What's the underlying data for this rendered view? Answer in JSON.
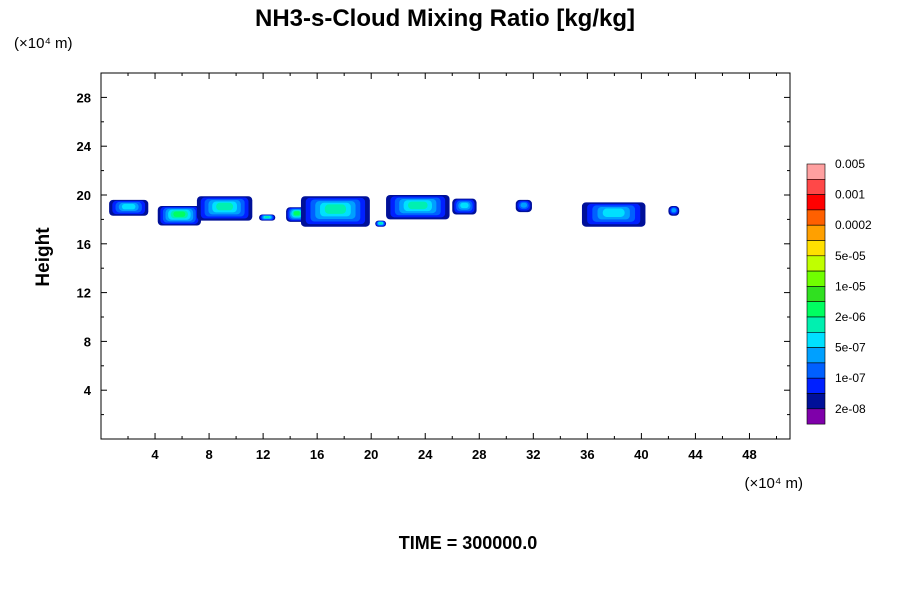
{
  "chart_data": {
    "type": "heatmap",
    "title": "NH3-s-Cloud Mixing Ratio [kg/kg]",
    "xlabel": "",
    "ylabel": "Height",
    "x_unit": "(×10⁴ m)",
    "y_unit": "(×10⁴ m)",
    "footer": "TIME = 300000.0",
    "xlim": [
      0,
      51
    ],
    "ylim": [
      0,
      30
    ],
    "x_ticks": [
      4,
      8,
      12,
      16,
      20,
      24,
      28,
      32,
      36,
      40,
      44,
      48
    ],
    "y_ticks": [
      4,
      8,
      12,
      16,
      20,
      24,
      28
    ],
    "grid": false,
    "legend_position": "right",
    "colorbar": {
      "colors": [
        "#7f00aa",
        "#001099",
        "#0020ff",
        "#0060ff",
        "#00a0ff",
        "#00e0ff",
        "#00f0b0",
        "#00ff60",
        "#30e020",
        "#70ff00",
        "#c0ff00",
        "#ffe000",
        "#ffa000",
        "#ff6000",
        "#ff0000",
        "#ff4848",
        "#ffa0a0"
      ],
      "labels": [
        "2e-08",
        "1e-07",
        "5e-07",
        "2e-06",
        "1e-05",
        "5e-05",
        "0.0002",
        "0.001",
        "0.005"
      ]
    },
    "cloud_cells": [
      {
        "x": [
          0.6,
          3.5
        ],
        "y": [
          18.3,
          19.6
        ],
        "level": 4
      },
      {
        "x": [
          4.2,
          7.4
        ],
        "y": [
          17.5,
          19.1
        ],
        "level": 6
      },
      {
        "x": [
          7.1,
          11.2
        ],
        "y": [
          17.9,
          19.9
        ],
        "level": 5
      },
      {
        "x": [
          11.7,
          12.9
        ],
        "y": [
          17.9,
          18.4
        ],
        "level": 5
      },
      {
        "x": [
          13.7,
          15.3
        ],
        "y": [
          17.8,
          19.0
        ],
        "level": 6
      },
      {
        "x": [
          14.8,
          19.9
        ],
        "y": [
          17.4,
          19.9
        ],
        "level": 5
      },
      {
        "x": [
          20.3,
          21.1
        ],
        "y": [
          17.4,
          17.9
        ],
        "level": 5
      },
      {
        "x": [
          21.1,
          25.8
        ],
        "y": [
          18.0,
          20.0
        ],
        "level": 5
      },
      {
        "x": [
          26.0,
          27.8
        ],
        "y": [
          18.4,
          19.7
        ],
        "level": 4
      },
      {
        "x": [
          30.7,
          31.9
        ],
        "y": [
          18.6,
          19.6
        ],
        "level": 3
      },
      {
        "x": [
          35.6,
          40.3
        ],
        "y": [
          17.4,
          19.4
        ],
        "level": 4
      },
      {
        "x": [
          42.0,
          42.8
        ],
        "y": [
          18.3,
          19.1
        ],
        "level": 3
      }
    ]
  }
}
